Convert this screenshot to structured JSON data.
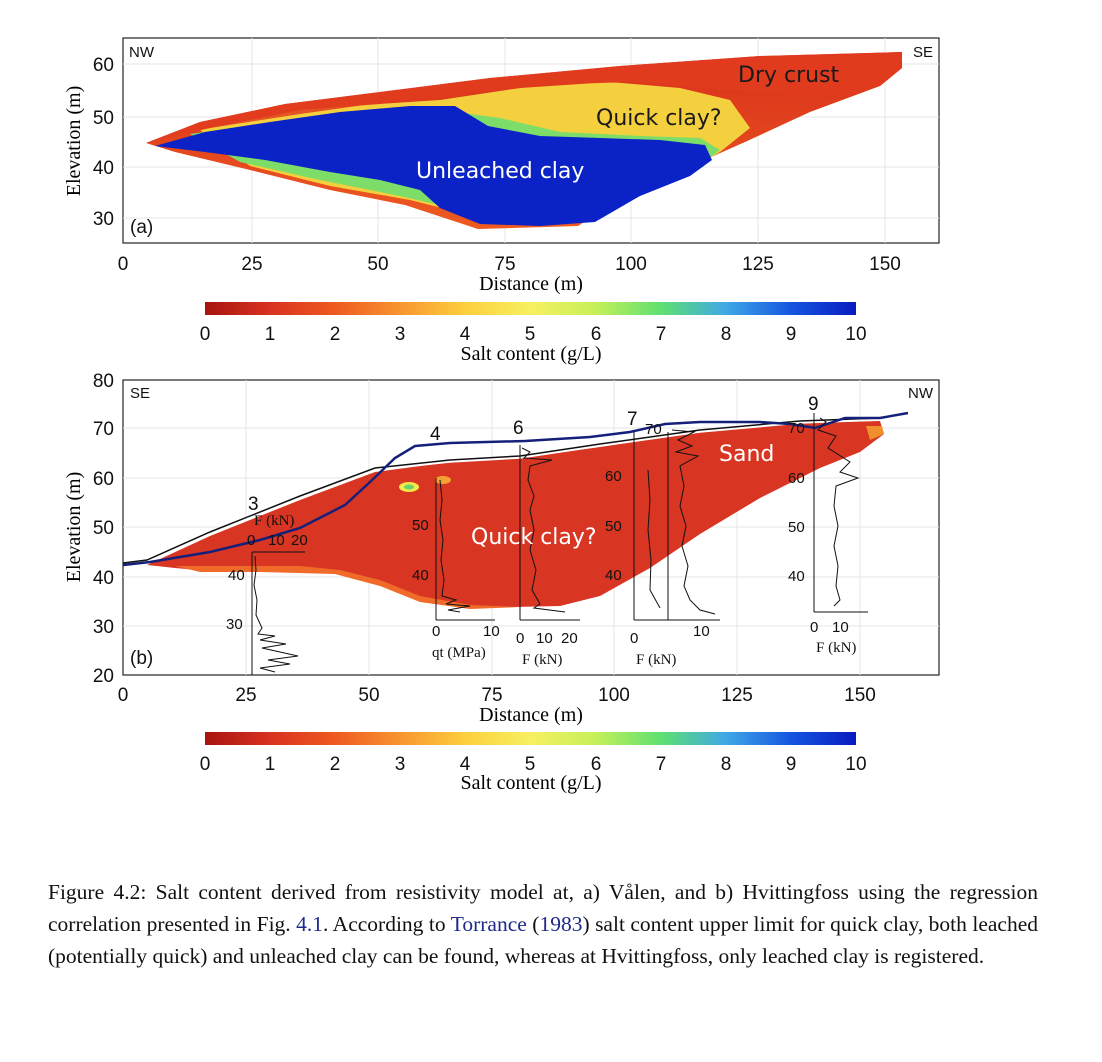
{
  "panel_a": {
    "ylabel": "Elevation (m)",
    "xlabel": "Distance (m)",
    "yticks": [
      "60",
      "50",
      "40",
      "30"
    ],
    "xticks": [
      "0",
      "25",
      "50",
      "75",
      "100",
      "125",
      "150"
    ],
    "corner_left": "NW",
    "corner_right": "SE",
    "panel_label": "(a)",
    "annotations": [
      "Dry crust",
      "Quick clay?",
      "Unleached clay"
    ]
  },
  "colorbar": {
    "ticks": [
      "0",
      "1",
      "2",
      "3",
      "4",
      "5",
      "6",
      "7",
      "8",
      "9",
      "10"
    ],
    "label": "Salt content (g/L)",
    "colors": [
      "#a8140f",
      "#d83220",
      "#ee5a20",
      "#f89530",
      "#fdcf3c",
      "#f7f060",
      "#c5f05a",
      "#5fe070",
      "#3fa8e6",
      "#1555e0",
      "#0a1bbf"
    ]
  },
  "panel_b": {
    "ylabel": "Elevation (m)",
    "xlabel": "Distance (m)",
    "yticks": [
      "80",
      "70",
      "60",
      "50",
      "40",
      "30",
      "20"
    ],
    "xticks": [
      "0",
      "25",
      "50",
      "75",
      "100",
      "125",
      "150"
    ],
    "corner_left": "SE",
    "corner_right": "NW",
    "panel_label": "(b)",
    "annotations": [
      "Sand",
      "Quick clay?"
    ],
    "profiles": [
      {
        "number": "3",
        "title": "F (kN)",
        "axis_ticks": [
          "0",
          "10",
          "20"
        ],
        "depth_ticks": [
          "40",
          "30"
        ]
      },
      {
        "number": "4",
        "axis_label": "qt (MPa)",
        "axis_ticks": [
          "0",
          "10"
        ],
        "depth_ticks": [
          "50",
          "40"
        ]
      },
      {
        "number": "6",
        "axis_label": "F (kN)",
        "axis_ticks": [
          "0",
          "10",
          "20"
        ],
        "depth_ticks": [
          "60",
          "50",
          "40"
        ]
      },
      {
        "number": "7",
        "axis_label": "F (kN)",
        "axis_ticks": [
          "0",
          "10"
        ],
        "depth_ticks": [
          "70"
        ]
      },
      {
        "number": "9",
        "axis_label": "F (kN)",
        "axis_ticks": [
          "0",
          "10"
        ],
        "depth_ticks": [
          "70",
          "60",
          "50",
          "40"
        ]
      }
    ]
  },
  "caption": {
    "text1": "Figure 4.2: Salt content derived from resistivity model at, a) Vålen, and b) Hvittingfoss using the regression correlation presented in Fig. ",
    "fig_ref": "4.1",
    "text2": ". According to ",
    "author": "Torrance",
    "text3": " (",
    "year": "1983",
    "text4": ") salt content upper limit for quick clay, both leached (potentially quick) and unleached clay can be found, whereas at Hvittingfoss, only leached clay is registered."
  }
}
